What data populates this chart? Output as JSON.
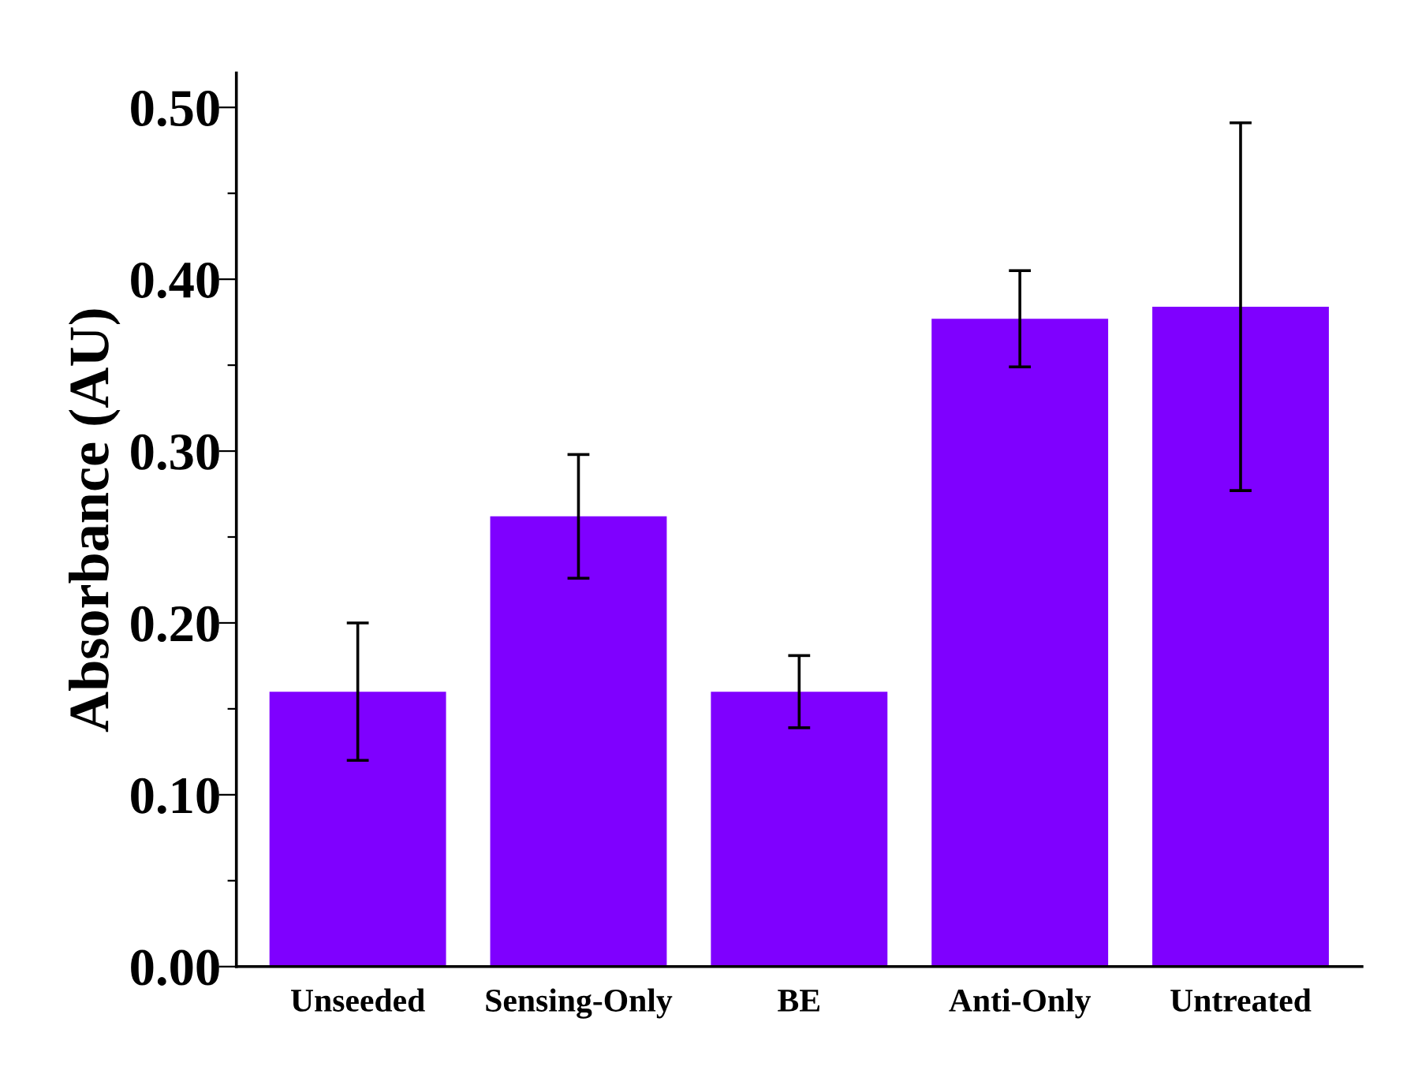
{
  "chart_data": {
    "type": "bar",
    "ylabel": "Absorbance (AU)",
    "categories": [
      "Unseeded",
      "Sensing-Only",
      "BE",
      "Anti-Only",
      "Untreated"
    ],
    "values": [
      0.16,
      0.262,
      0.16,
      0.377,
      0.384
    ],
    "errors": [
      0.04,
      0.036,
      0.021,
      0.028,
      0.107
    ],
    "color": "#7f00ff",
    "ylim": [
      0,
      0.52
    ],
    "yticks": [
      {
        "value": 0,
        "label": "0.00"
      },
      {
        "value": 0.05,
        "label": null
      },
      {
        "value": 0.1,
        "label": "0.10"
      },
      {
        "value": 0.15,
        "label": null
      },
      {
        "value": 0.2,
        "label": "0.20"
      },
      {
        "value": 0.25,
        "label": null
      },
      {
        "value": 0.3,
        "label": "0.30"
      },
      {
        "value": 0.35,
        "label": null
      },
      {
        "value": 0.4,
        "label": "0.40"
      },
      {
        "value": 0.45,
        "label": null
      },
      {
        "value": 0.5,
        "label": "0.50"
      }
    ],
    "grid": false
  }
}
